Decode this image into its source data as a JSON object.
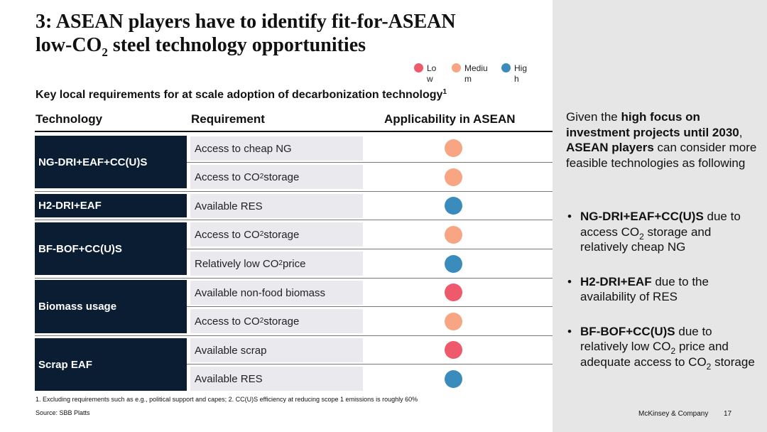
{
  "title": {
    "line1": "3: ASEAN players have to identify fit-for-ASEAN",
    "line2a": "low-CO",
    "line2_sub": "2",
    "line2b": " steel technology opportunities"
  },
  "legend": [
    {
      "label": "Low",
      "color": "#ee5a6c"
    },
    {
      "label": "Medium",
      "color": "#f7a582"
    },
    {
      "label": "High",
      "color": "#3a8cbc"
    }
  ],
  "subtitle": {
    "text": "Key local requirements for at scale adoption of decarbonization technology",
    "sup": "1"
  },
  "table": {
    "headers": {
      "technology": "Technology",
      "requirement": "Requirement",
      "applicability": "Applicability in ASEAN"
    },
    "groups": [
      {
        "technology": "NG-DRI+EAF+CC(U)S",
        "rows": [
          {
            "req_before": "Access to cheap NG",
            "req_sub": "",
            "req_after": "",
            "level": "Medium"
          },
          {
            "req_before": "Access to CO",
            "req_sub": "2",
            "req_after": " storage",
            "level": "Medium"
          }
        ]
      },
      {
        "technology": "H2-DRI+EAF",
        "rows": [
          {
            "req_before": "Available RES",
            "req_sub": "",
            "req_after": "",
            "level": "High"
          }
        ]
      },
      {
        "technology": "BF-BOF+CC(U)S",
        "rows": [
          {
            "req_before": "Access to CO",
            "req_sub": "2",
            "req_after": " storage",
            "level": "Medium"
          },
          {
            "req_before": "Relatively low CO",
            "req_sub": "2",
            "req_after": " price",
            "level": "High"
          }
        ]
      },
      {
        "technology": "Biomass usage",
        "rows": [
          {
            "req_before": "Available non-food biomass",
            "req_sub": "",
            "req_after": "",
            "level": "Low"
          },
          {
            "req_before": "Access to CO",
            "req_sub": "2",
            "req_after": " storage",
            "level": "Medium"
          }
        ]
      },
      {
        "technology": "Scrap EAF",
        "rows": [
          {
            "req_before": "Available scrap",
            "req_sub": "",
            "req_after": "",
            "level": "Low"
          },
          {
            "req_before": "Available RES",
            "req_sub": "",
            "req_after": "",
            "level": "High"
          }
        ]
      }
    ]
  },
  "right": {
    "intro": {
      "p1": "Given the ",
      "b1": "high focus on investment projects until 2030",
      "p2": ", ",
      "b2": "ASEAN players",
      "p3": " can consider more feasible technologies as following"
    },
    "bullets": [
      {
        "bold": "NG-DRI+EAF+CC(U)S",
        "t1": " due to access CO",
        "sub1": "2",
        "t2": " storage and relatively cheap NG",
        "sub2": "",
        "t3": ""
      },
      {
        "bold": "H2-DRI+EAF",
        "t1": " due to the availability of RES",
        "sub1": "",
        "t2": "",
        "sub2": "",
        "t3": ""
      },
      {
        "bold": "BF-BOF+CC(U)S",
        "t1": " due to relatively low CO",
        "sub1": "2",
        "t2": " price and adequate access to CO",
        "sub2": "2",
        "t3": " storage"
      }
    ],
    "bullet_char": "•"
  },
  "footnote": "1. Excluding requirements such as e.g., political support and capes; 2. CC(U)S efficiency at reducing scope 1 emissions is roughly 60%",
  "source": "Source: SBB Platts",
  "brand": "McKinsey & Company",
  "page_number": "17"
}
